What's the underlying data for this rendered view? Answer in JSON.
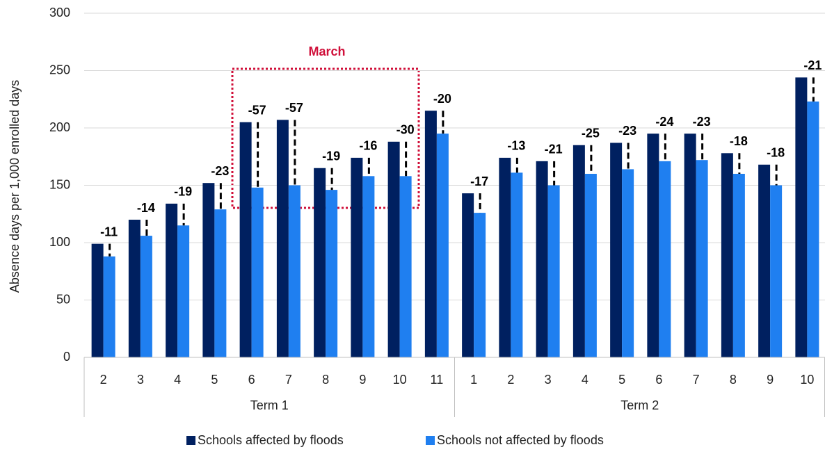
{
  "chart_data": {
    "type": "bar",
    "y_label": "Absence days per 1,000 enrolled days",
    "annotation": "March",
    "categories": [
      "2",
      "3",
      "4",
      "5",
      "6",
      "7",
      "8",
      "9",
      "10",
      "11",
      "1",
      "2",
      "3",
      "4",
      "5",
      "6",
      "7",
      "8",
      "9",
      "10"
    ],
    "groups": [
      {
        "name": "Term 1",
        "size": 10
      },
      {
        "name": "Term 2",
        "size": 10
      }
    ],
    "series": [
      {
        "name": "Schools affected by floods",
        "color": "#002060",
        "values": [
          99,
          120,
          134,
          152,
          205,
          207,
          165,
          174,
          188,
          215,
          143,
          174,
          171,
          185,
          187,
          195,
          195,
          178,
          168,
          244
        ]
      },
      {
        "name": "Schools not affected by floods",
        "color": "#1f7ff0",
        "values": [
          88,
          106,
          115,
          129,
          148,
          150,
          146,
          158,
          158,
          195,
          126,
          161,
          150,
          160,
          164,
          171,
          172,
          160,
          150,
          223
        ]
      }
    ],
    "differences": [
      -11,
      -14,
      -19,
      -23,
      -57,
      -57,
      -19,
      -16,
      -30,
      -20,
      -17,
      -13,
      -21,
      -25,
      -23,
      -24,
      -23,
      -18,
      -18,
      -21
    ],
    "ylim": [
      0,
      300
    ],
    "yticks": [
      0,
      50,
      100,
      150,
      200,
      250,
      300
    ],
    "grid": true
  }
}
